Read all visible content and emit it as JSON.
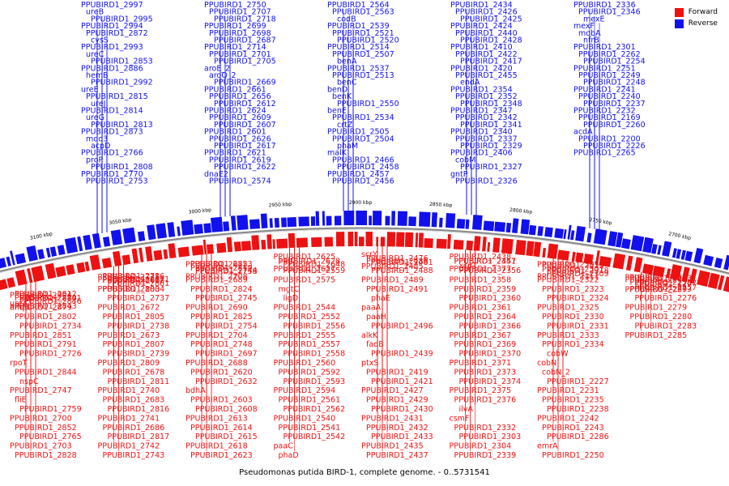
{
  "caption": "Pseudomonas putida BIRD-1, complete genome. - 0..5731541",
  "legend": {
    "forward_label": "Forward",
    "reverse_label": "Reverse",
    "forward_color": "#ee1111",
    "reverse_color": "#1111ee"
  },
  "backbone_color": "#888888",
  "scale_labels": [
    "2450 kbp",
    "2500 kbp",
    "2550 kbp",
    "2600 kbp",
    "2650 kbp",
    "2700 kbp",
    "2750 kbp",
    "2800 kbp",
    "2850 kbp",
    "2900 kbp",
    "2950 kbp",
    "3000 kbp",
    "3050 kbp",
    "3100 kbp",
    "3150 kbp",
    "3200 kbp",
    "3250 kbp",
    "3300 kbp",
    "3350 kbp"
  ],
  "reverse_labels": [
    "PPUBIRD1_2997",
    "ureB",
    "PPUBIRD1_2995",
    "PPUBIRD1_2994",
    "PPUBIRD1_2872",
    "cysS",
    "PPUBIRD1_2993",
    "ureC",
    "PPUBIRD1_2853",
    "PPUBIRD1_2886",
    "hemB",
    "PPUBIRD1_2992",
    "ureE",
    "PPUBIRD1_2815",
    "ureJ",
    "PPUBIRD1_2814",
    "ureG",
    "PPUBIRD1_2813",
    "PPUBIRD1_2873",
    "mqo3",
    "acpD",
    "PPUBIRD1_2766",
    "proP",
    "PPUBIRD1_2808",
    "PPUBIRD1_2770",
    "PPUBIRD1_2753",
    "PPUBIRD1_2750",
    "PPUBIRD1_2707",
    "PPUBIRD1_2718",
    "PPUBIRD1_2699",
    "PPUBIRD1_2698",
    "PPUBIRD1_2687",
    "PPUBIRD1_2714",
    "PPUBIRD1_2701",
    "PPUBIRD1_2705",
    "aroE_2",
    "aroQ_2",
    "PPUBIRD1_2669",
    "PPUBIRD1_2661",
    "PPUBIRD1_2656",
    "PPUBIRD1_2612",
    "PPUBIRD1_2624",
    "PPUBIRD1_2609",
    "PPUBIRD1_2607",
    "PPUBIRD1_2601",
    "PPUBIRD1_2626",
    "PPUBIRD1_2617",
    "PPUBIRD1_2621",
    "PPUBIRD1_2619",
    "PPUBIRD1_2622",
    "dnaE2",
    "PPUBIRD1_2574",
    "PPUBIRD1_2564",
    "PPUBIRD1_2563",
    "codB",
    "PPUBIRD1_2539",
    "PPUBIRD1_2521",
    "PPUBIRD1_2520",
    "PPUBIRD1_2514",
    "PPUBIRD1_2507",
    "benA",
    "PPUBIRD1_2537",
    "PPUBIRD1_2513",
    "benC",
    "benD",
    "benK",
    "PPUBIRD1_2550",
    "benE",
    "PPUBIRD1_2534",
    "crtZ",
    "PPUBIRD1_2505",
    "PPUBIRD1_2504",
    "phaM",
    "malK",
    "PPUBIRD1_2466",
    "PPUBIRD1_2458",
    "PPUBIRD1_2457",
    "PPUBIRD1_2456",
    "PPUBIRD1_2434",
    "PPUBIRD1_2426",
    "PPUBIRD1_2425",
    "PPUBIRD1_2424",
    "PPUBIRD1_2440",
    "PPUBIRD1_2428",
    "PPUBIRD1_2410",
    "PPUBIRD1_2422",
    "PPUBIRD1_2417",
    "PPUBIRD1_2420",
    "PPUBIRD1_2455",
    "endA",
    "PPUBIRD1_2354",
    "PPUBIRD1_2352",
    "PPUBIRD1_2348",
    "PPUBIRD1_2347",
    "PPUBIRD1_2342",
    "PPUBIRD1_2341",
    "PPUBIRD1_2340",
    "PPUBIRD1_2337",
    "PPUBIRD1_2329",
    "PPUBIRD1_2406",
    "cobM",
    "PPUBIRD1_2327",
    "gntP",
    "PPUBIRD1_2326",
    "PPUBIRD1_2336",
    "PPUBIRD1_2346",
    "mexE",
    "mexF",
    "mobA",
    "nfrB",
    "PPUBIRD1_2301",
    "PPUBIRD1_2262",
    "PPUBIRD1_2254",
    "PPUBIRD1_2251",
    "PPUBIRD1_2249",
    "PPUBIRD1_2248",
    "PPUBIRD1_2241",
    "PPUBIRD1_2240",
    "PPUBIRD1_2237",
    "PPUBIRD1_2232",
    "PPUBIRD1_2169",
    "PPUBIRD1_2260",
    "acdA",
    "PPUBIRD1_2200",
    "PPUBIRD1_2226",
    "PPUBIRD1_2265"
  ],
  "forward_labels": [
    "PPUBIRD1_2904",
    "PPUBIRD1_2880",
    "PPUBIRD1_2846",
    "PPUBIRD1_2879",
    "PPUBIRD1_2812",
    "ttgS",
    "ureA",
    "PPUBIRD1_2843",
    "PPUBIRD1_2781",
    "ampC",
    "PPUBIRD1_2802",
    "PPUBIRD1_2734",
    "PPUBIRD1_2851",
    "PPUBIRD1_2791",
    "PPUBIRD1_2726",
    "rpoT",
    "PPUBIRD1_2844",
    "nspC",
    "PPUBIRD1_2747",
    "fliE",
    "PPUBIRD1_2759",
    "PPUBIRD1_2700",
    "PPUBIRD1_2852",
    "PPUBIRD1_2765",
    "PPUBIRD1_2703",
    "PPUBIRD1_2828",
    "PPUBIRD1_2735",
    "PPUBIRD1_2668",
    "PPUBIRD1_2861",
    "PPUBIRD1_2803",
    "PPUBIRD1_2736",
    "PPUBIRD1_2671",
    "PPUBIRD1_2862",
    "PPUBIRD1_2804",
    "PPUBIRD1_2737",
    "PPUBIRD1_2672",
    "PPUBIRD1_2805",
    "PPUBIRD1_2738",
    "PPUBIRD1_2673",
    "PPUBIRD1_2807",
    "PPUBIRD1_2739",
    "PPUBIRD1_2809",
    "PPUBIRD1_2678",
    "PPUBIRD1_2811",
    "PPUBIRD1_2740",
    "PPUBIRD1_2683",
    "PPUBIRD1_2816",
    "PPUBIRD1_2741",
    "PPUBIRD1_2686",
    "PPUBIRD1_2817",
    "PPUBIRD1_2742",
    "PPUBIRD1_2743",
    "PPUBIRD1_2675",
    "PPUBIRD1_2819",
    "PPUBIRD1_2758",
    "PPUBIRD1_2708",
    "PPUBIRD1_2823",
    "PPUBIRD1_2744",
    "PPUBIRD1_2689",
    "PPUBIRD1_2824",
    "PPUBIRD1_2745",
    "PPUBIRD1_2690",
    "PPUBIRD1_2825",
    "PPUBIRD1_2754",
    "PPUBIRD1_2704",
    "PPUBIRD1_2748",
    "PPUBIRD1_2697",
    "PPUBIRD1_2688",
    "PPUBIRD1_2620",
    "PPUBIRD1_2632",
    "bdhA",
    "PPUBIRD1_2603",
    "PPUBIRD1_2608",
    "PPUBIRD1_2613",
    "PPUBIRD1_2614",
    "PPUBIRD1_2615",
    "PPUBIRD1_2618",
    "PPUBIRD1_2623",
    "PPUBIRD1_2625",
    "ppiC",
    "PPUBIRD1_2648",
    "PPUBIRD1_2627",
    "PPUBIRD1_2628",
    "PPUBIRD1_2559",
    "PPUBIRD1_2575",
    "mgtC",
    "ligD",
    "PPUBIRD1_2544",
    "PPUBIRD1_2552",
    "PPUBIRD1_2556",
    "PPUBIRD1_2555",
    "PPUBIRD1_2557",
    "PPUBIRD1_2558",
    "PPUBIRD1_2560",
    "PPUBIRD1_2592",
    "PPUBIRD1_2593",
    "PPUBIRD1_2594",
    "PPUBIRD1_2561",
    "PPUBIRD1_2562",
    "PPUBIRD1_2540",
    "PPUBIRD1_2541",
    "PPUBIRD1_2542",
    "paaC",
    "phaD",
    "scrY",
    "PPUBIRD1_2476",
    "PPUBIRD1_2481",
    "PPUBIRD1_2485",
    "PPUBIRD1_2486",
    "PPUBIRD1_2488",
    "PPUBIRD1_2489",
    "PPUBIRD1_2491",
    "phaE",
    "paaA",
    "paaH",
    "PPUBIRD1_2496",
    "alkK",
    "fadB",
    "PPUBIRD1_2439",
    "ptxS",
    "PPUBIRD1_2419",
    "PPUBIRD1_2421",
    "PPUBIRD1_2427",
    "PPUBIRD1_2429",
    "PPUBIRD1_2430",
    "PPUBIRD1_2431",
    "PPUBIRD1_2432",
    "PPUBIRD1_2433",
    "PPUBIRD1_2435",
    "PPUBIRD1_2437",
    "PPUBIRD1_2438",
    "PPUBIRD1_2441",
    "xcpT",
    "PPUBIRD1_2377",
    "PPUBIRD1_2357",
    "PPUBIRD1_2356",
    "PPUBIRD1_2358",
    "PPUBIRD1_2359",
    "PPUBIRD1_2360",
    "PPUBIRD1_2361",
    "PPUBIRD1_2364",
    "PPUBIRD1_2366",
    "PPUBIRD1_2367",
    "PPUBIRD1_2369",
    "PPUBIRD1_2370",
    "PPUBIRD1_2371",
    "PPUBIRD1_2373",
    "PPUBIRD1_2374",
    "PPUBIRD1_2375",
    "PPUBIRD1_2376",
    "ilvA",
    "csmF",
    "PPUBIRD1_2332",
    "PPUBIRD1_2303",
    "PPUBIRD1_2304",
    "PPUBIRD1_2339",
    "PPUBIRD1_2305",
    "PPUBIRD1_2307",
    "PPUBIRD1_2309",
    "PPUBIRD1_2311",
    "PPUBIRD1_2313",
    "PPUBIRD1_2318",
    "PPUBIRD1_2322",
    "PPUBIRD1_2323",
    "PPUBIRD1_2324",
    "PPUBIRD1_2325",
    "PPUBIRD1_2330",
    "PPUBIRD1_2331",
    "PPUBIRD1_2333",
    "PPUBIRD1_2334",
    "cobW",
    "cobN",
    "cobN_2",
    "PPUBIRD1_2227",
    "PPUBIRD1_2231",
    "PPUBIRD1_2235",
    "PPUBIRD1_2238",
    "PPUBIRD1_2242",
    "PPUBIRD1_2243",
    "PPUBIRD1_2286",
    "emrA",
    "PPUBIRD1_2250",
    "PPUBIRD1_2252",
    "PPUBIRD1_2255",
    "PPUBIRD1_2257",
    "PPUBIRD1_2259",
    "PPUBIRD1_2263",
    "PPUBIRD1_2267",
    "PPUBIRD1_2270",
    "PPUBIRD1_2273",
    "PPUBIRD1_2276",
    "PPUBIRD1_2279",
    "PPUBIRD1_2280",
    "PPUBIRD1_2283",
    "PPUBIRD1_2285"
  ]
}
